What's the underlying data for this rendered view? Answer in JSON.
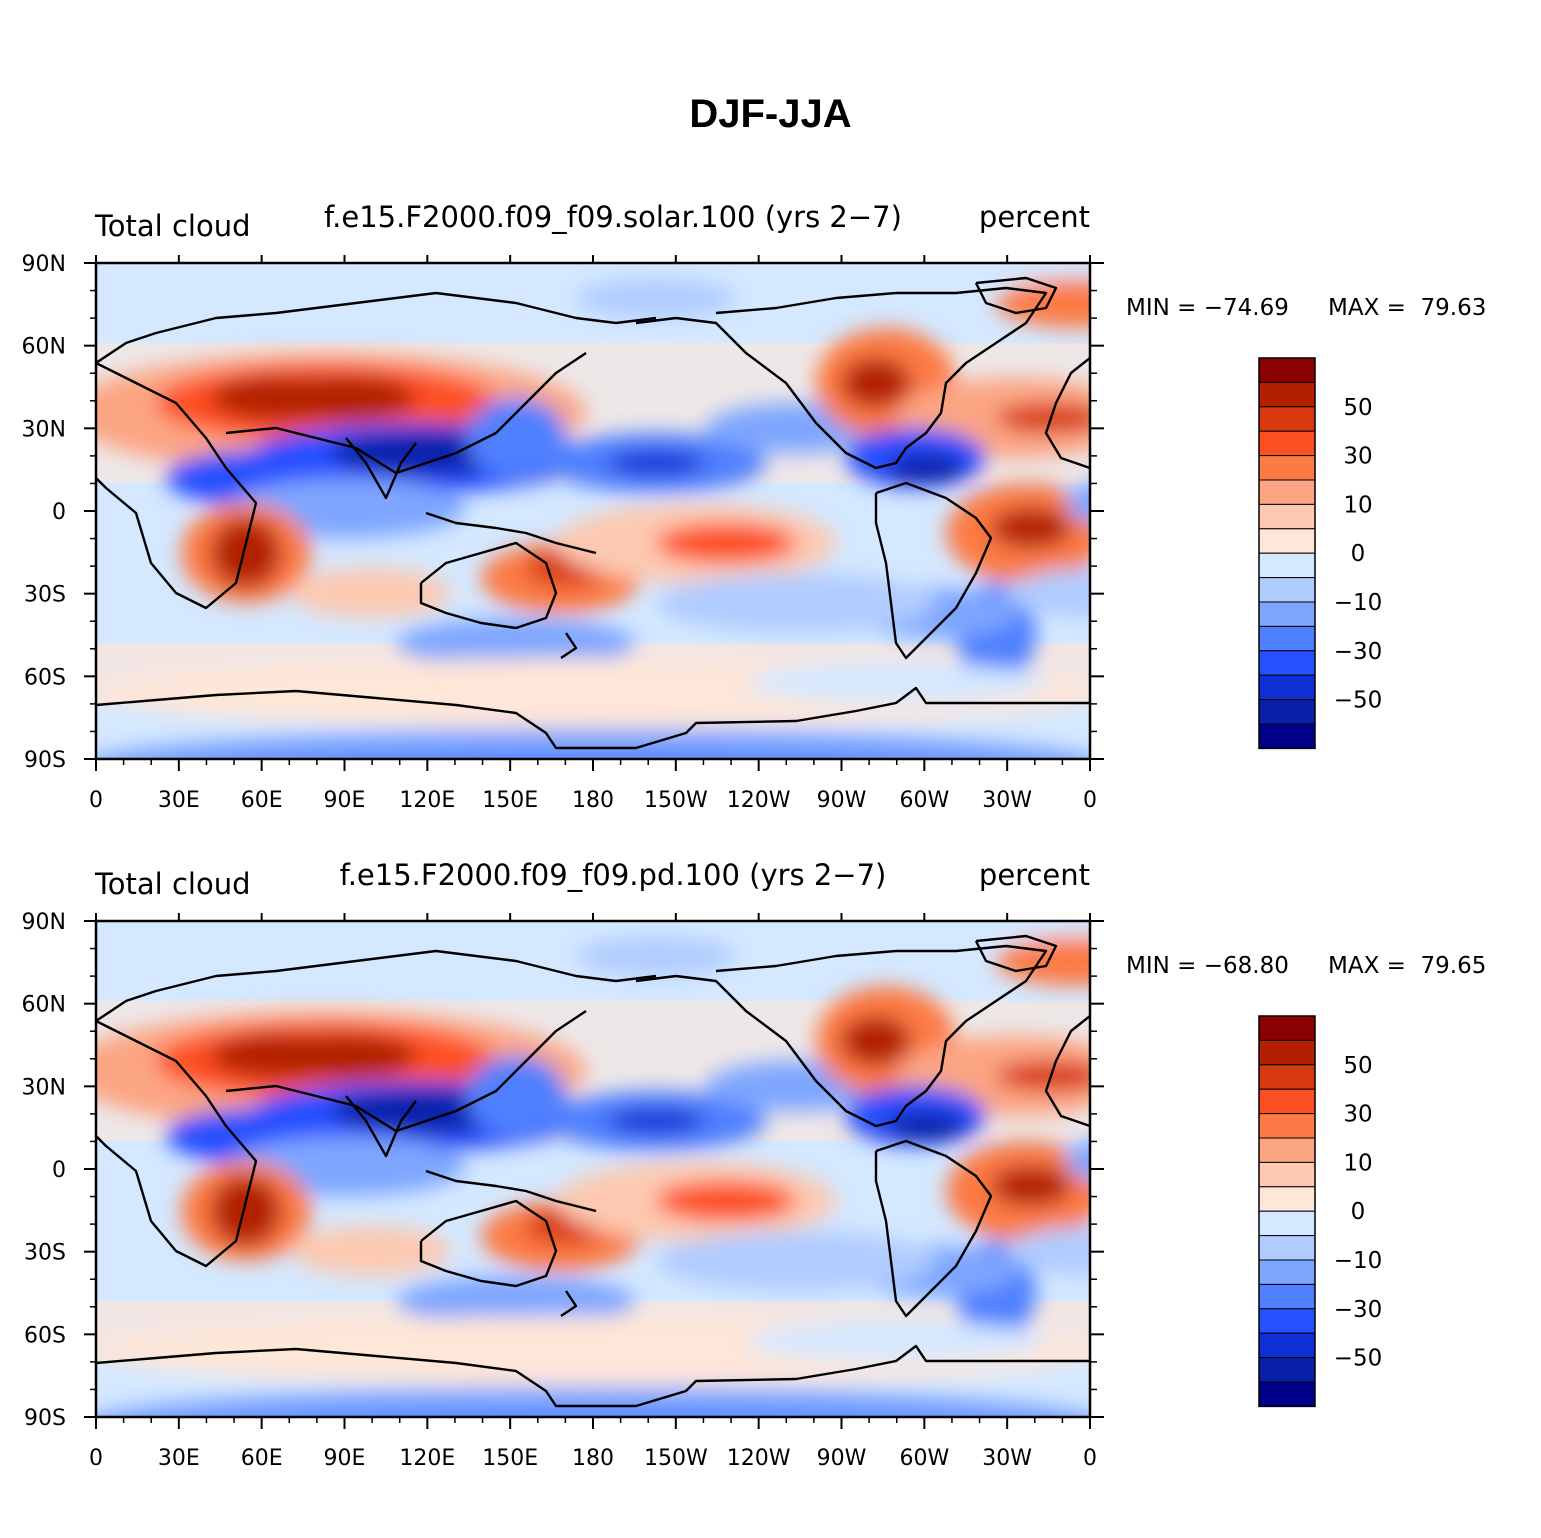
{
  "title": "DJF-JJA",
  "x_ticks": [
    "0",
    "30E",
    "60E",
    "90E",
    "120E",
    "150E",
    "180",
    "150W",
    "120W",
    "90W",
    "60W",
    "30W",
    "0"
  ],
  "y_ticks": [
    "90N",
    "60N",
    "30N",
    "0",
    "30S",
    "60S",
    "90S"
  ],
  "colorbar": {
    "levels_labeled": [
      "50",
      "30",
      "10",
      "0",
      "−10",
      "−30",
      "−50"
    ],
    "colors": [
      "#8b0000",
      "#b22000",
      "#d83a10",
      "#fd5022",
      "#fc7a45",
      "#fca583",
      "#fdc9b0",
      "#fee6d8",
      "#d4e8ff",
      "#b0ccff",
      "#7ea6ff",
      "#4f80ff",
      "#2550ff",
      "#0e2fd4",
      "#0a20aa",
      "#00008b"
    ]
  },
  "panels": [
    {
      "left_label": "Total cloud",
      "center_label": "f.e15.F2000.f09_f09.solar.100 (yrs 2−7)",
      "right_label": "percent",
      "min_label": "MIN = −74.69",
      "max_label": "MAX =  79.63"
    },
    {
      "left_label": "Total cloud",
      "center_label": "f.e15.F2000.f09_f09.pd.100 (yrs 2−7)",
      "right_label": "percent",
      "min_label": "MIN = −68.80",
      "max_label": "MAX =  79.65"
    }
  ]
}
